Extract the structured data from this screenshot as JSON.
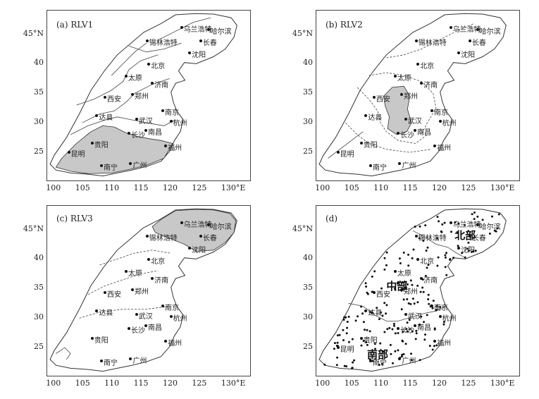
{
  "panels": [
    {
      "id": "a",
      "label": "(a)  RLV1",
      "cities": [
        {
          "name": "哈尔滨",
          "lon": 126.6,
          "lat": 45.8
        },
        {
          "name": "乌兰浩特",
          "lon": 122.0,
          "lat": 46.1
        },
        {
          "name": "长春",
          "lon": 125.3,
          "lat": 43.9
        },
        {
          "name": "锡林浩特",
          "lon": 116.1,
          "lat": 43.9
        },
        {
          "name": "沈阳",
          "lon": 123.4,
          "lat": 41.8
        },
        {
          "name": "北京",
          "lon": 116.4,
          "lat": 39.9
        },
        {
          "name": "太原",
          "lon": 112.5,
          "lat": 37.9
        },
        {
          "name": "济南",
          "lon": 117.0,
          "lat": 36.7
        },
        {
          "name": "郑州",
          "lon": 113.6,
          "lat": 34.8
        },
        {
          "name": "西安",
          "lon": 108.9,
          "lat": 34.3
        },
        {
          "name": "南京",
          "lon": 118.8,
          "lat": 32.1
        },
        {
          "name": "武汉",
          "lon": 114.3,
          "lat": 30.6
        },
        {
          "name": "杭州",
          "lon": 120.2,
          "lat": 30.3
        },
        {
          "name": "达县",
          "lon": 107.5,
          "lat": 31.2
        },
        {
          "name": "长沙",
          "lon": 113.0,
          "lat": 28.2
        },
        {
          "name": "南昌",
          "lon": 115.9,
          "lat": 28.7
        },
        {
          "name": "贵阳",
          "lon": 106.7,
          "lat": 26.6
        },
        {
          "name": "福州",
          "lon": 119.3,
          "lat": 26.1
        },
        {
          "name": "昆明",
          "lon": 102.7,
          "lat": 25.0
        },
        {
          "name": "南宁",
          "lon": 108.3,
          "lat": 22.8
        },
        {
          "name": "广州",
          "lon": 113.3,
          "lat": 23.1
        }
      ]
    },
    {
      "id": "b",
      "label": "(b)  RLV2",
      "cities": [
        {
          "name": "哈尔滨",
          "lon": 126.6,
          "lat": 45.8
        },
        {
          "name": "乌兰浩特",
          "lon": 122.0,
          "lat": 46.1
        },
        {
          "name": "长春",
          "lon": 125.3,
          "lat": 43.9
        },
        {
          "name": "锡林浩特",
          "lon": 116.1,
          "lat": 43.9
        },
        {
          "name": "沈阳",
          "lon": 123.4,
          "lat": 41.8
        },
        {
          "name": "北京",
          "lon": 116.4,
          "lat": 39.9
        },
        {
          "name": "太原",
          "lon": 112.5,
          "lat": 37.9
        },
        {
          "name": "济南",
          "lon": 117.0,
          "lat": 36.7
        },
        {
          "name": "郑州",
          "lon": 113.6,
          "lat": 34.8
        },
        {
          "name": "西安",
          "lon": 108.9,
          "lat": 34.3
        },
        {
          "name": "南京",
          "lon": 118.8,
          "lat": 32.1
        },
        {
          "name": "武汉",
          "lon": 114.3,
          "lat": 30.6
        },
        {
          "name": "杭州",
          "lon": 120.2,
          "lat": 30.3
        },
        {
          "name": "达县",
          "lon": 107.5,
          "lat": 31.2
        },
        {
          "name": "长沙",
          "lon": 113.0,
          "lat": 28.2
        },
        {
          "name": "南昌",
          "lon": 115.9,
          "lat": 28.7
        },
        {
          "name": "贵阳",
          "lon": 106.7,
          "lat": 26.6
        },
        {
          "name": "福州",
          "lon": 119.3,
          "lat": 26.1
        },
        {
          "name": "昆明",
          "lon": 102.7,
          "lat": 25.0
        },
        {
          "name": "南宁",
          "lon": 108.3,
          "lat": 22.8
        },
        {
          "name": "广州",
          "lon": 113.3,
          "lat": 23.1
        }
      ]
    },
    {
      "id": "c",
      "label": "(c)  RLV3",
      "cities": [
        {
          "name": "哈尔滨",
          "lon": 126.6,
          "lat": 45.8
        },
        {
          "name": "乌兰浩特",
          "lon": 122.0,
          "lat": 46.1
        },
        {
          "name": "长春",
          "lon": 125.3,
          "lat": 43.9
        },
        {
          "name": "锡林浩特",
          "lon": 116.1,
          "lat": 43.9
        },
        {
          "name": "沈阳",
          "lon": 123.4,
          "lat": 41.8
        },
        {
          "name": "北京",
          "lon": 116.4,
          "lat": 39.9
        },
        {
          "name": "太原",
          "lon": 112.5,
          "lat": 37.9
        },
        {
          "name": "济南",
          "lon": 117.0,
          "lat": 36.7
        },
        {
          "name": "郑州",
          "lon": 113.6,
          "lat": 34.8
        },
        {
          "name": "西安",
          "lon": 108.9,
          "lat": 34.3
        },
        {
          "name": "南京",
          "lon": 118.8,
          "lat": 32.1
        },
        {
          "name": "武汉",
          "lon": 114.3,
          "lat": 30.6
        },
        {
          "name": "杭州",
          "lon": 120.2,
          "lat": 30.3
        },
        {
          "name": "达县",
          "lon": 107.5,
          "lat": 31.2
        },
        {
          "name": "长沙",
          "lon": 113.0,
          "lat": 28.2
        },
        {
          "name": "南昌",
          "lon": 115.9,
          "lat": 28.7
        },
        {
          "name": "贵阳",
          "lon": 106.7,
          "lat": 26.6
        },
        {
          "name": "福州",
          "lon": 119.3,
          "lat": 26.1
        },
        {
          "name": "南宁",
          "lon": 108.3,
          "lat": 22.8
        },
        {
          "name": "广州",
          "lon": 113.3,
          "lat": 23.1
        }
      ]
    },
    {
      "id": "d",
      "label": "(d)",
      "regions": [
        {
          "name": "北部",
          "lon": 124.5,
          "lat": 44.2
        },
        {
          "name": "中部",
          "lon": 112.8,
          "lat": 35.6
        },
        {
          "name": "南部",
          "lon": 109.5,
          "lat": 24.0
        }
      ],
      "cities": [
        {
          "name": "哈尔滨",
          "lon": 126.6,
          "lat": 45.8
        },
        {
          "name": "乌兰浩特",
          "lon": 122.0,
          "lat": 46.1
        },
        {
          "name": "长春",
          "lon": 125.3,
          "lat": 43.9
        },
        {
          "name": "锡林浩特",
          "lon": 116.1,
          "lat": 43.9
        },
        {
          "name": "沈阳",
          "lon": 123.4,
          "lat": 41.8
        },
        {
          "name": "北京",
          "lon": 116.4,
          "lat": 39.9
        },
        {
          "name": "太原",
          "lon": 112.5,
          "lat": 37.9
        },
        {
          "name": "济南",
          "lon": 117.0,
          "lat": 36.7
        },
        {
          "name": "郑州",
          "lon": 113.6,
          "lat": 34.8
        },
        {
          "name": "西安",
          "lon": 108.9,
          "lat": 34.3
        },
        {
          "name": "南京",
          "lon": 118.8,
          "lat": 32.1
        },
        {
          "name": "武汉",
          "lon": 114.3,
          "lat": 30.6
        },
        {
          "name": "杭州",
          "lon": 120.2,
          "lat": 30.3
        },
        {
          "name": "达县",
          "lon": 107.5,
          "lat": 31.2
        },
        {
          "name": "长沙",
          "lon": 113.0,
          "lat": 28.2
        },
        {
          "name": "南昌",
          "lon": 115.9,
          "lat": 28.7
        },
        {
          "name": "贵阳",
          "lon": 106.7,
          "lat": 26.6
        },
        {
          "name": "福州",
          "lon": 119.3,
          "lat": 26.1
        },
        {
          "name": "昆明",
          "lon": 102.7,
          "lat": 25.0
        },
        {
          "name": "南宁",
          "lon": 108.3,
          "lat": 22.8
        },
        {
          "name": "广州",
          "lon": 113.3,
          "lat": 23.1
        }
      ]
    }
  ],
  "axes": {
    "lon_ticks": [
      "100",
      "105",
      "110",
      "115",
      "120",
      "125",
      "130°E"
    ],
    "lat_ticks": [
      "45°N",
      "40",
      "35",
      "30",
      "25"
    ],
    "lon_range": [
      99,
      134
    ],
    "lat_range": [
      20,
      49
    ]
  }
}
